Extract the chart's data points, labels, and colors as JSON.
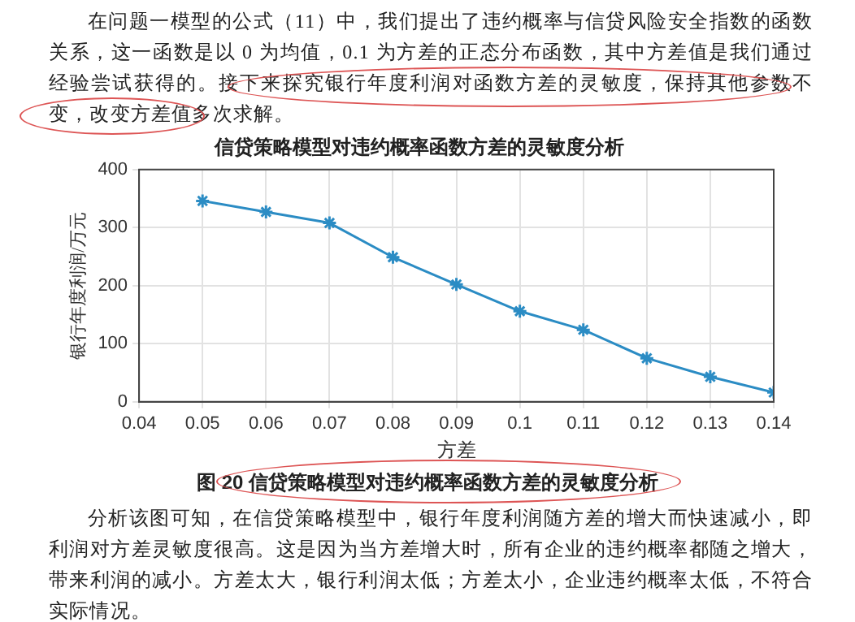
{
  "chart_data": {
    "type": "line",
    "title": "信贷策略模型对违约概率函数方差的灵敏度分析",
    "xlabel": "方差",
    "ylabel": "银行年度利润/万元",
    "x": [
      0.05,
      0.06,
      0.07,
      0.08,
      0.09,
      0.1,
      0.11,
      0.12,
      0.13,
      0.14
    ],
    "series": [
      {
        "color": "#2b8cc4",
        "values": [
          346,
          327,
          308,
          249,
          202,
          156,
          124,
          75,
          43,
          16
        ]
      }
    ],
    "xlim": [
      0.04,
      0.14
    ],
    "xticks": [
      0.04,
      0.05,
      0.06,
      0.07,
      0.08,
      0.09,
      0.1,
      0.11,
      0.12,
      0.13,
      0.14
    ],
    "ylim": [
      0,
      400
    ],
    "yticks": [
      0,
      100,
      200,
      300,
      400
    ],
    "grid": true,
    "marker": "cross",
    "line_style": "solid",
    "legend": false,
    "annotations": [
      "在问题一模型的公式（11）中，我们提出了违约概率与信贷风险安全指数的函数关系，这一函数是以 0 为均值，0.1 为方差的正态分布函数，其中方差值是我们通过经验尝试获得的。接下来探究银行年度利润对函数方差的灵敏度，保持其他参数不变，改变方差值多次求解。",
      "图 20  信贷策略模型对违约概率函数方差的灵敏度分析",
      "分析该图可知，在信贷策略模型中，银行年度利润随方差的增大而快速减小，即利润对方差灵敏度很高。这是因为当方差增大时，所有企业的违约概率都随之增大，带来利润的减小。方差太大，银行利润太低；方差太小，企业违约概率太低，不符合实际情况。"
    ]
  }
}
